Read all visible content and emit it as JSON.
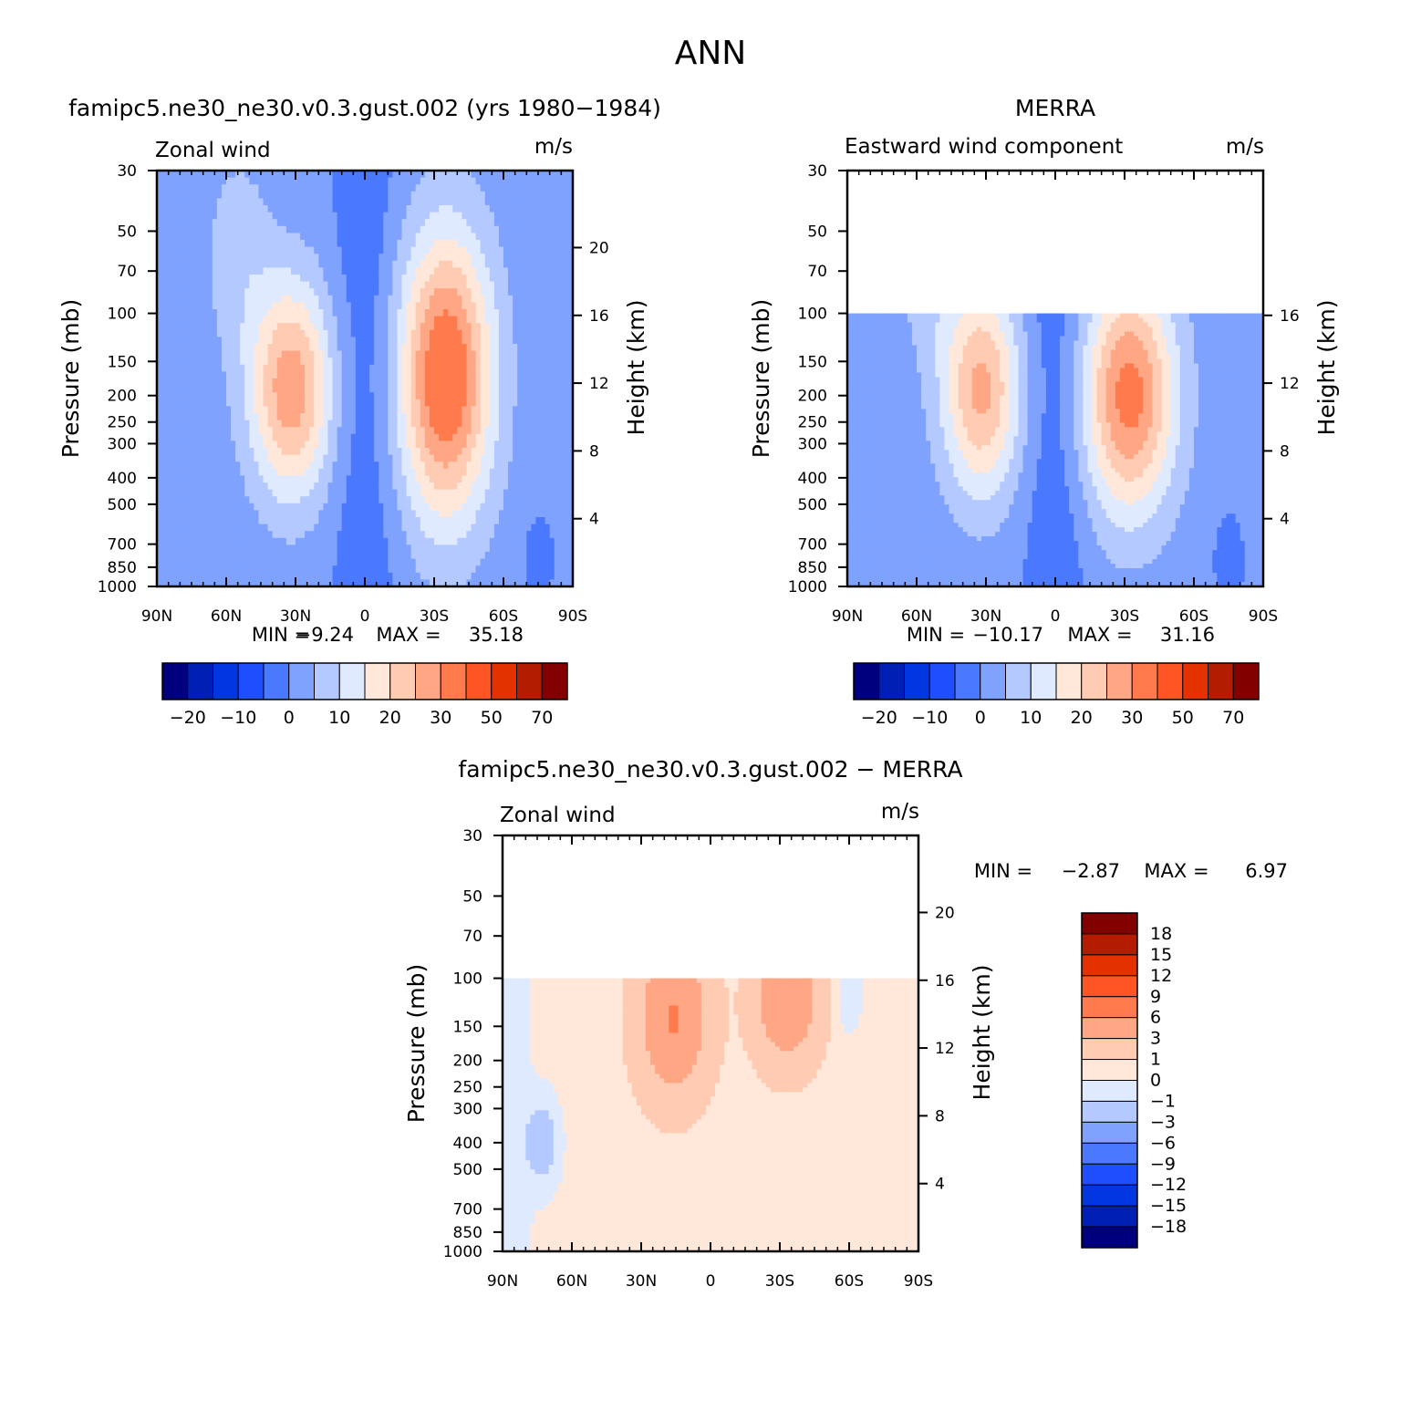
{
  "figure_title": "ANN",
  "chart_data": [
    {
      "type": "heatmap",
      "panel_title": "famipc5.ne30_ne30.v0.3.gust.002 (yrs 1980-1984)",
      "variable": "Zonal wind",
      "units": "m/s",
      "ylabel": "Pressure (mb)",
      "ylabel_right": "Height (km)",
      "x_ticks": [
        "90N",
        "60N",
        "30N",
        "0",
        "30S",
        "60S",
        "90S"
      ],
      "y_ticks": [
        "30",
        "50",
        "70",
        "100",
        "150",
        "200",
        "250",
        "300",
        "400",
        "500",
        "700",
        "850",
        "1000"
      ],
      "y_ticks_right": [
        "20",
        "16",
        "12",
        "8",
        "4"
      ],
      "min_label": "MIN =",
      "min_value": "-9.24",
      "max_label": "MAX =",
      "max_value": "35.18",
      "ylim": [
        1000,
        30
      ],
      "xlim": [
        90,
        -90
      ],
      "data_top_pressure": 30,
      "jets": [
        {
          "lat": 32,
          "p": 190,
          "peak": 27,
          "lat_hw": 18,
          "p_hw": 0.9
        },
        {
          "lat": -35,
          "p": 170,
          "peak": 35,
          "lat_hw": 20,
          "p_hw": 1.2
        }
      ],
      "colorbar_labels": [
        "-20",
        "-10",
        "0",
        "10",
        "20",
        "30",
        "50",
        "70"
      ],
      "levels": [
        -20,
        -15,
        -10,
        -5,
        0,
        5,
        10,
        15,
        20,
        25,
        30,
        40,
        50,
        60,
        70
      ]
    },
    {
      "type": "heatmap",
      "panel_title": "MERRA",
      "variable": "Eastward wind component",
      "units": "m/s",
      "ylabel": "Pressure (mb)",
      "ylabel_right": "Height (km)",
      "x_ticks": [
        "90N",
        "60N",
        "30N",
        "0",
        "30S",
        "60S",
        "90S"
      ],
      "y_ticks": [
        "30",
        "50",
        "70",
        "100",
        "150",
        "200",
        "250",
        "300",
        "400",
        "500",
        "700",
        "850",
        "1000"
      ],
      "y_ticks_right": [
        "16",
        "12",
        "8",
        "4"
      ],
      "min_label": "MIN =",
      "min_value": "-10.17",
      "max_label": "MAX =",
      "max_value": "31.16",
      "ylim": [
        1000,
        30
      ],
      "xlim": [
        90,
        -90
      ],
      "data_top_pressure": 100,
      "jets": [
        {
          "lat": 32,
          "p": 190,
          "peak": 25,
          "lat_hw": 17,
          "p_hw": 0.9
        },
        {
          "lat": -32,
          "p": 200,
          "peak": 31,
          "lat_hw": 20,
          "p_hw": 1.0
        }
      ],
      "colorbar_labels": [
        "-20",
        "-10",
        "0",
        "10",
        "20",
        "30",
        "50",
        "70"
      ],
      "levels": [
        -20,
        -15,
        -10,
        -5,
        0,
        5,
        10,
        15,
        20,
        25,
        30,
        40,
        50,
        60,
        70
      ]
    },
    {
      "type": "heatmap",
      "panel_title": "famipc5.ne30_ne30.v0.3.gust.002 - MERRA",
      "variable": "Zonal wind",
      "units": "m/s",
      "ylabel": "Pressure (mb)",
      "ylabel_right": "Height (km)",
      "x_ticks": [
        "90N",
        "60N",
        "30N",
        "0",
        "30S",
        "60S",
        "90S"
      ],
      "y_ticks": [
        "30",
        "50",
        "70",
        "100",
        "150",
        "200",
        "250",
        "300",
        "400",
        "500",
        "700",
        "850",
        "1000"
      ],
      "y_ticks_right": [
        "20",
        "16",
        "12",
        "8",
        "4"
      ],
      "min_label": "MIN =",
      "min_value": "-2.87",
      "max_label": "MAX =",
      "max_value": "6.97",
      "ylim": [
        1000,
        30
      ],
      "xlim": [
        90,
        -90
      ],
      "data_top_pressure": 100,
      "colorbar_labels": [
        "18",
        "15",
        "12",
        "9",
        "6",
        "3",
        "1",
        "0",
        "-1",
        "-3",
        "-6",
        "-9",
        "-12",
        "-15",
        "-18"
      ],
      "levels": [
        -18,
        -15,
        -12,
        -9,
        -6,
        -3,
        -1,
        0,
        1,
        3,
        6,
        9,
        12,
        15,
        18
      ]
    }
  ],
  "colors": {
    "palette16": [
      "#00007f",
      "#0020b5",
      "#0037e0",
      "#1e4eff",
      "#4a78ff",
      "#7fa2ff",
      "#b3c9ff",
      "#dfeaff",
      "#ffe8d9",
      "#ffcbb2",
      "#ffa685",
      "#ff7a4d",
      "#ff5423",
      "#e33200",
      "#b41c00",
      "#820000"
    ],
    "palette16_diff": [
      "#00007f",
      "#0020b5",
      "#0037e0",
      "#1e4eff",
      "#4a78ff",
      "#7fa2ff",
      "#b3c9ff",
      "#dfeaff",
      "#ffe8d9",
      "#ffcbb2",
      "#ffa685",
      "#ff7a4d",
      "#ff5423",
      "#e33200",
      "#b41c00",
      "#820000"
    ]
  }
}
